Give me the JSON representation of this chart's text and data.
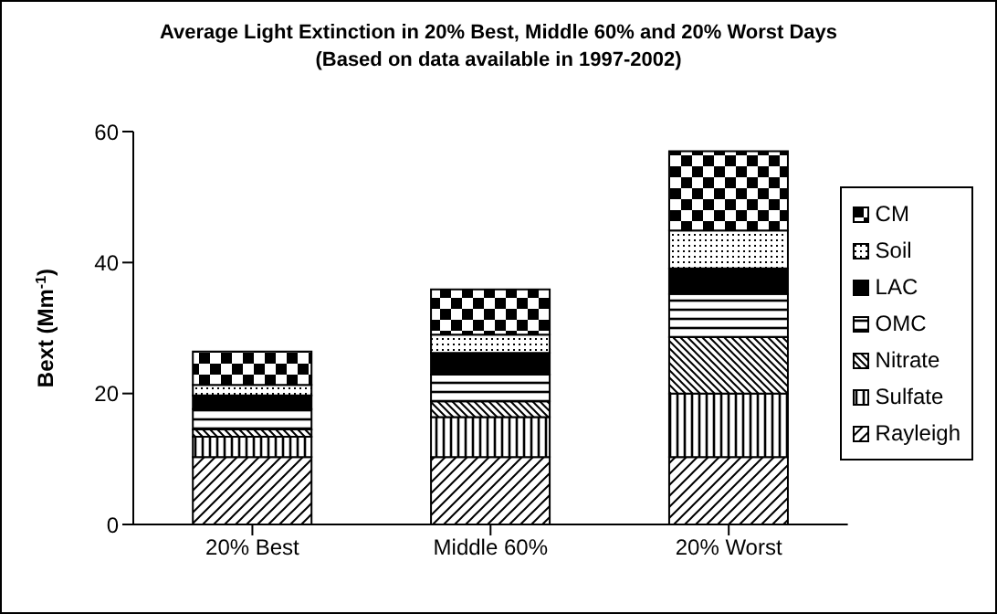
{
  "chart_data": {
    "type": "bar",
    "title": "Average Light Extinction in 20% Best, Middle 60% and 20% Worst Days",
    "subtitle": "(Based on data available in 1997-2002)",
    "ylabel": "Bext (Mm$^{-1}$)",
    "categories": [
      "20% Best",
      "Middle 60%",
      "20% Worst"
    ],
    "stacked": true,
    "ylim": [
      0,
      60
    ],
    "yticks": [
      0,
      20,
      40,
      60
    ],
    "grid": false,
    "legend": "right",
    "series": [
      {
        "name": "Rayleigh",
        "color": "#000000",
        "values": [
          10.3,
          10.3,
          10.3
        ]
      },
      {
        "name": "Sulfate",
        "color": "#000000",
        "values": [
          3.1,
          6.1,
          9.7
        ]
      },
      {
        "name": "Nitrate",
        "color": "#000000",
        "values": [
          1.1,
          2.4,
          8.6
        ]
      },
      {
        "name": "OMC",
        "color": "#000000",
        "values": [
          3.1,
          4.1,
          6.6
        ]
      },
      {
        "name": "LAC",
        "color": "#000000",
        "values": [
          2.1,
          3.3,
          3.9
        ]
      },
      {
        "name": "Soil",
        "color": "#000000",
        "values": [
          1.6,
          2.8,
          5.8
        ]
      },
      {
        "name": "CM",
        "color": "#000000",
        "values": [
          5.1,
          6.9,
          12.1
        ]
      }
    ]
  }
}
